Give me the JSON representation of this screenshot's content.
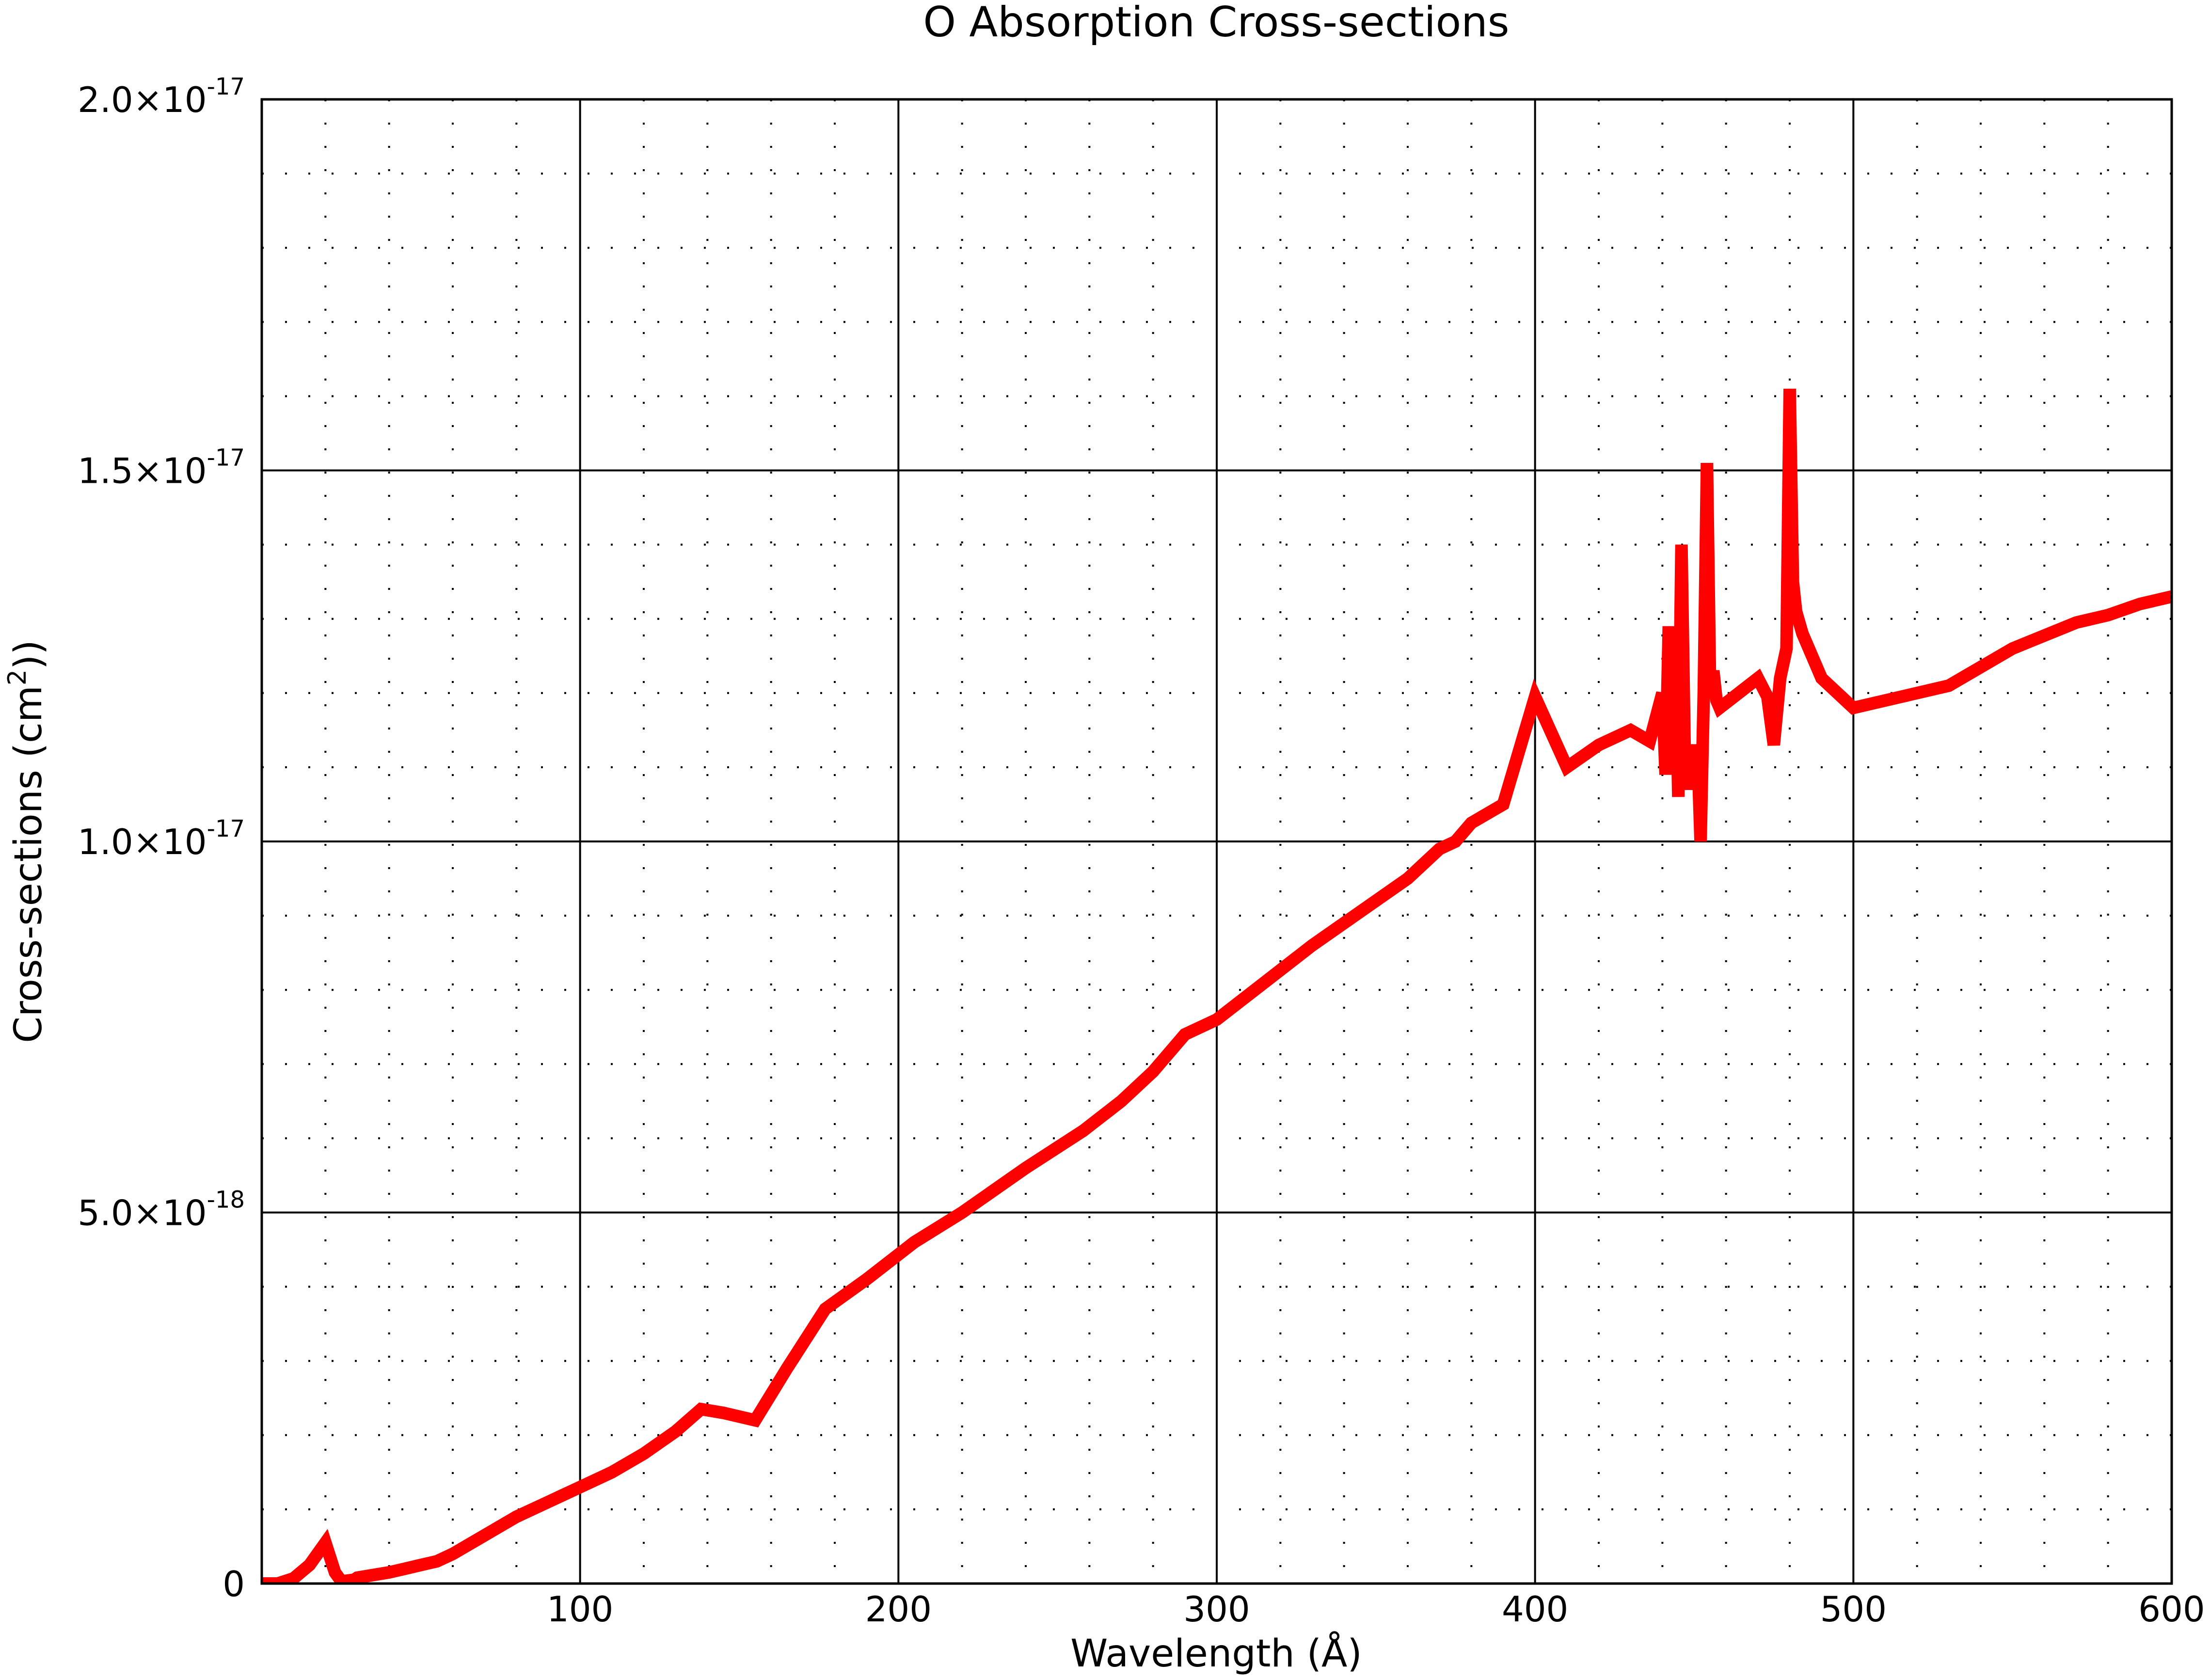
{
  "chart_data": {
    "type": "line",
    "title": "O Absorption Cross-sections",
    "xlabel": "Wavelength (Å)",
    "ylabel": {
      "prefix": "Cross-sections (cm",
      "superscript": "2",
      "suffix": "))"
    },
    "xlim": [
      0,
      600
    ],
    "ylim": [
      0,
      2e-17
    ],
    "x_ticks": [
      {
        "value": 100,
        "label": "100"
      },
      {
        "value": 200,
        "label": "200"
      },
      {
        "value": 300,
        "label": "300"
      },
      {
        "value": 400,
        "label": "400"
      },
      {
        "value": 500,
        "label": "500"
      },
      {
        "value": 600,
        "label": "600"
      }
    ],
    "y_ticks": [
      {
        "value": 0,
        "mantissa": "0",
        "exponent": ""
      },
      {
        "value": 5e-18,
        "mantissa": "5.0×10",
        "exponent": "-18"
      },
      {
        "value": 1e-17,
        "mantissa": "1.0×10",
        "exponent": "-17"
      },
      {
        "value": 1.5e-17,
        "mantissa": "1.5×10",
        "exponent": "-17"
      },
      {
        "value": 2e-17,
        "mantissa": "2.0×10",
        "exponent": "-17"
      }
    ],
    "grid": {
      "major": true,
      "minor": true
    },
    "series": [
      {
        "color": "#ff0000",
        "x": [
          0,
          5,
          10,
          15,
          20,
          23,
          25,
          29,
          30,
          40,
          45,
          50,
          55,
          60,
          70,
          80,
          90,
          100,
          110,
          120,
          125,
          130,
          138,
          145,
          155,
          165,
          177,
          190,
          205,
          220,
          240,
          258,
          270,
          280,
          290,
          300,
          315,
          330,
          345,
          360,
          370,
          375,
          380,
          390,
          400,
          410,
          420,
          430,
          436,
          440,
          441,
          442,
          443,
          444,
          445,
          446,
          447,
          448,
          449,
          450,
          451,
          452,
          453,
          454,
          455,
          456,
          457,
          458,
          470,
          473,
          475,
          477,
          479,
          480,
          481,
          482,
          484,
          490,
          500,
          515,
          530,
          550,
          570,
          580,
          590,
          600
        ],
        "y": [
          0.0,
          0.0,
          7e-20,
          2.5e-19,
          5.5e-19,
          1.5e-19,
          3e-20,
          5e-20,
          8e-20,
          1.5e-19,
          2e-19,
          2.5e-19,
          3e-19,
          4e-19,
          6.5e-19,
          9e-19,
          1.1e-18,
          1.3e-18,
          1.5e-18,
          1.75e-18,
          1.9e-18,
          2.05e-18,
          2.35e-18,
          2.3e-18,
          2.2e-18,
          2.9e-18,
          3.7e-18,
          4.1e-18,
          4.6e-18,
          5e-18,
          5.6e-18,
          6.1e-18,
          6.5e-18,
          6.9e-18,
          7.4e-18,
          7.6e-18,
          8.1e-18,
          8.6e-18,
          9.05e-18,
          9.5e-18,
          9.9e-18,
          1e-17,
          1.025e-17,
          1.05e-17,
          1.195e-17,
          1.1e-17,
          1.13e-17,
          1.15e-17,
          1.135e-17,
          1.2e-17,
          1.09e-17,
          1.29e-17,
          1.1e-17,
          1.28e-17,
          1.06e-17,
          1.4e-17,
          1.12e-17,
          1.07e-17,
          1.13e-17,
          1.1e-17,
          1.13e-17,
          1e-17,
          1.2e-17,
          1.51e-17,
          1.2e-17,
          1.23e-17,
          1.19e-17,
          1.18e-17,
          1.22e-17,
          1.195e-17,
          1.13e-17,
          1.22e-17,
          1.26e-17,
          1.61e-17,
          1.35e-17,
          1.31e-17,
          1.28e-17,
          1.22e-17,
          1.18e-17,
          1.195e-17,
          1.21e-17,
          1.26e-17,
          1.295e-17,
          1.305e-17,
          1.32e-17,
          1.33e-17
        ]
      }
    ]
  }
}
